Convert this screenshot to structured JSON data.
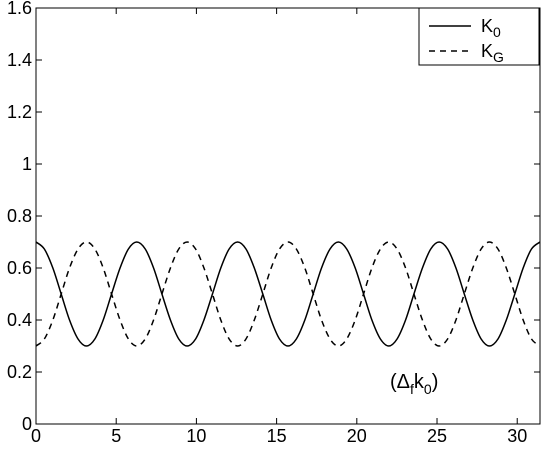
{
  "chart_data": {
    "type": "line",
    "x": [
      0,
      0.52,
      1.05,
      1.57,
      2.09,
      2.62,
      3.14,
      3.67,
      4.19,
      4.71,
      5.24,
      5.76,
      6.28,
      6.81,
      7.33,
      7.85,
      8.38,
      8.9,
      9.42,
      9.95,
      10.47,
      11.0,
      11.52,
      12.04,
      12.57,
      13.09,
      13.61,
      14.14,
      14.66,
      15.18,
      15.71,
      16.23,
      16.76,
      17.28,
      17.8,
      18.33,
      18.85,
      19.37,
      19.9,
      20.42,
      20.94,
      21.47,
      21.99,
      22.51,
      23.04,
      23.56,
      24.09,
      24.61,
      25.13,
      25.66,
      26.18,
      26.7,
      27.23,
      27.75,
      28.27,
      28.8,
      29.32,
      29.85,
      30.37,
      30.89,
      31.42
    ],
    "series": [
      {
        "name": "K0",
        "color": "#000000",
        "dash": false,
        "values": [
          0.7,
          0.673,
          0.6,
          0.5,
          0.4,
          0.327,
          0.3,
          0.327,
          0.4,
          0.5,
          0.6,
          0.673,
          0.7,
          0.673,
          0.6,
          0.5,
          0.4,
          0.327,
          0.3,
          0.327,
          0.4,
          0.5,
          0.6,
          0.673,
          0.7,
          0.673,
          0.6,
          0.5,
          0.4,
          0.327,
          0.3,
          0.327,
          0.4,
          0.5,
          0.6,
          0.673,
          0.7,
          0.673,
          0.6,
          0.5,
          0.4,
          0.327,
          0.3,
          0.327,
          0.4,
          0.5,
          0.6,
          0.673,
          0.7,
          0.673,
          0.6,
          0.5,
          0.4,
          0.327,
          0.3,
          0.327,
          0.4,
          0.5,
          0.6,
          0.673,
          0.7
        ]
      },
      {
        "name": "KG",
        "color": "#000000",
        "dash": true,
        "values": [
          0.3,
          0.327,
          0.4,
          0.5,
          0.6,
          0.673,
          0.7,
          0.673,
          0.6,
          0.5,
          0.4,
          0.327,
          0.3,
          0.327,
          0.4,
          0.5,
          0.6,
          0.673,
          0.7,
          0.673,
          0.6,
          0.5,
          0.4,
          0.327,
          0.3,
          0.327,
          0.4,
          0.5,
          0.6,
          0.673,
          0.7,
          0.673,
          0.6,
          0.5,
          0.4,
          0.327,
          0.3,
          0.327,
          0.4,
          0.5,
          0.6,
          0.673,
          0.7,
          0.673,
          0.6,
          0.5,
          0.4,
          0.327,
          0.3,
          0.327,
          0.4,
          0.5,
          0.6,
          0.673,
          0.7,
          0.673,
          0.6,
          0.5,
          0.4,
          0.327,
          0.3
        ]
      }
    ],
    "xlim": [
      0,
      31.42
    ],
    "xticks": [
      0,
      5,
      10,
      15,
      20,
      25,
      30
    ],
    "ylim": [
      0,
      1.6
    ],
    "yticks": [
      0,
      0.2,
      0.4,
      0.6,
      0.8,
      1,
      1.2,
      1.4,
      1.6
    ],
    "annotation": [
      "(Δ",
      "f",
      "k",
      "0",
      ")"
    ],
    "legend": "upper-right"
  }
}
